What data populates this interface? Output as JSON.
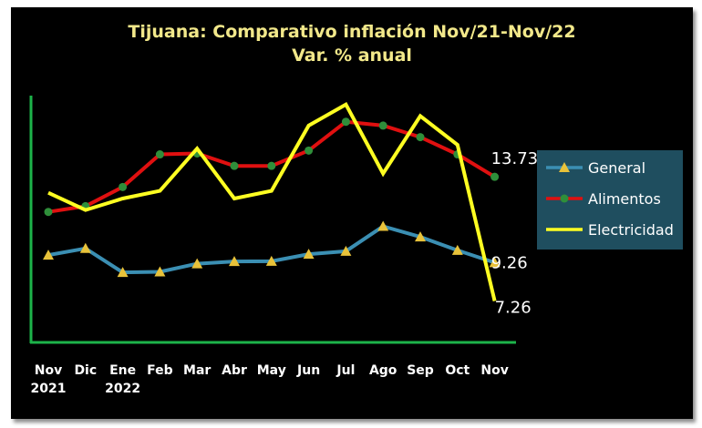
{
  "chart_data": {
    "type": "line",
    "title": "Tijuana: Comparativo inflación Nov/21-Nov/22",
    "subtitle": "Var. % anual",
    "categories": [
      [
        "Nov",
        "2021"
      ],
      [
        "Dic",
        ""
      ],
      [
        "Ene",
        "2022"
      ],
      [
        "Feb",
        ""
      ],
      [
        "Mar",
        ""
      ],
      [
        "Abr",
        ""
      ],
      [
        "May",
        ""
      ],
      [
        "Jun",
        ""
      ],
      [
        "Jul",
        ""
      ],
      [
        "Ago",
        ""
      ],
      [
        "Sep",
        ""
      ],
      [
        "Oct",
        ""
      ],
      [
        "Nov",
        ""
      ]
    ],
    "series": [
      {
        "name": "General",
        "color": "#3b8fb3",
        "marker": "triangle",
        "marker_color": "#e8c23a",
        "values": [
          9.65,
          10.0,
          8.75,
          8.78,
          9.2,
          9.32,
          9.33,
          9.7,
          9.85,
          11.15,
          10.6,
          9.9,
          9.26
        ]
      },
      {
        "name": "Alimentos",
        "color": "#e01010",
        "marker": "circle",
        "marker_color": "#2f8f3a",
        "values": [
          11.9,
          12.2,
          13.2,
          14.9,
          14.95,
          14.3,
          14.3,
          15.1,
          16.6,
          16.4,
          15.8,
          14.9,
          13.73
        ]
      },
      {
        "name": "Electricidad",
        "color": "#ffff22",
        "marker": "none",
        "values": [
          12.9,
          12.0,
          12.6,
          13.0,
          15.2,
          12.6,
          13.0,
          16.4,
          17.5,
          13.9,
          16.9,
          15.4,
          7.26
        ]
      }
    ],
    "data_labels": [
      {
        "series": "Alimentos",
        "index": 12,
        "text": "13.73"
      },
      {
        "series": "General",
        "index": 12,
        "text": "9.26"
      },
      {
        "series": "Electricidad",
        "index": 12,
        "text": "7.26"
      }
    ],
    "ylim": [
      5.1,
      18.2
    ],
    "grid": false,
    "legend_position": "right",
    "axis_color": "#1db34a"
  }
}
